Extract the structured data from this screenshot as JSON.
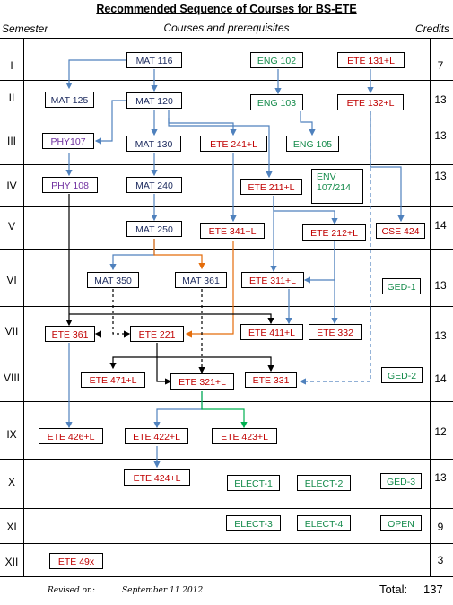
{
  "title": "Recommended Sequence of Courses for BS-ETE",
  "headers": {
    "semester": "Semester",
    "courses": "Courses and prerequisites",
    "credits": "Credits"
  },
  "semesters": [
    {
      "label": "I",
      "credits": "7"
    },
    {
      "label": "II",
      "credits": "13"
    },
    {
      "label": "III",
      "credits": "13"
    },
    {
      "label": "IV",
      "credits": "13"
    },
    {
      "label": "V",
      "credits": "14"
    },
    {
      "label": "VI",
      "credits": "13"
    },
    {
      "label": "VII",
      "credits": "13"
    },
    {
      "label": "VIII",
      "credits": "14"
    },
    {
      "label": "IX",
      "credits": "12"
    },
    {
      "label": "X",
      "credits": "13"
    },
    {
      "label": "XI",
      "credits": "9"
    },
    {
      "label": "XII",
      "credits": "3"
    }
  ],
  "courses": {
    "mat116": "MAT 116",
    "eng102": "ENG 102",
    "ete131": "ETE 131+L",
    "mat125": "MAT 125",
    "mat120": "MAT 120",
    "eng103": "ENG 103",
    "ete132": "ETE 132+L",
    "phy107": "PHY107",
    "mat130": "MAT 130",
    "ete241": "ETE 241+L",
    "eng105": "ENG 105",
    "phy108": "PHY 108",
    "mat240": "MAT 240",
    "ete211": "ETE 211+L",
    "env": "ENV 107/214",
    "mat250": "MAT 250",
    "ete341": "ETE 341+L",
    "ete212": "ETE 212+L",
    "cse424": "CSE 424",
    "mat350": "MAT 350",
    "mat361": "MAT 361",
    "ete311": "ETE 311+L",
    "ged1": "GED-1",
    "ete361": "ETE 361",
    "ete221": "ETE 221",
    "ete411": "ETE 411+L",
    "ete332": "ETE 332",
    "ete471": "ETE 471+L",
    "ete321": "ETE 321+L",
    "ete331": "ETE 331",
    "ged2": "GED-2",
    "ete426": "ETE 426+L",
    "ete422": "ETE 422+L",
    "ete423": "ETE 423+L",
    "ete424": "ETE 424+L",
    "elect1": "ELECT-1",
    "elect2": "ELECT-2",
    "ged3": "GED-3",
    "elect3": "ELECT-3",
    "elect4": "ELECT-4",
    "open": "OPEN",
    "ete49x": "ETE 49x"
  },
  "footer": {
    "revised_label": "Revised on:",
    "revised_date": "September 11 2012",
    "total_label": "Total:",
    "total_value": "137"
  },
  "colors": {
    "blue_arrow": "#4f81bd",
    "black_arrow": "#000000",
    "orange_arrow": "#e46c0a",
    "green_arrow": "#00b050",
    "navy": "#1f2d60",
    "red": "#c00000",
    "green": "#138a4a",
    "purple": "#7030a0"
  }
}
